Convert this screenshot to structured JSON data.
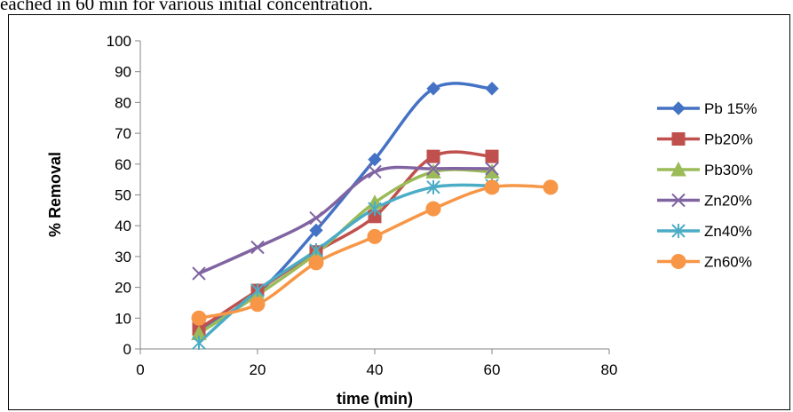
{
  "caption": "eached in 60 min for various initial concentration.",
  "chart_data": {
    "type": "scatter",
    "subtype": "smoothed lines with markers",
    "xlabel": "time (min)",
    "ylabel": "% Removal",
    "xlim": [
      0,
      80
    ],
    "ylim": [
      0,
      100
    ],
    "x_ticks": [
      0,
      20,
      40,
      60,
      80
    ],
    "y_ticks": [
      0,
      10,
      20,
      30,
      40,
      50,
      60,
      70,
      80,
      90,
      100
    ],
    "grid": false,
    "legend_position": "right",
    "series": [
      {
        "name": "Pb 15%",
        "color": "#4472c4",
        "marker": "diamond",
        "x": [
          10,
          20,
          30,
          40,
          50,
          60
        ],
        "y": [
          6,
          18,
          38.5,
          61.5,
          84.5,
          84.5
        ]
      },
      {
        "name": "Pb20%",
        "color": "#c0504d",
        "marker": "square",
        "x": [
          10,
          20,
          30,
          40,
          50,
          60
        ],
        "y": [
          6.5,
          19,
          31.5,
          43,
          62.5,
          62.5
        ]
      },
      {
        "name": "Pb30%",
        "color": "#9bbb59",
        "marker": "triangle",
        "x": [
          10,
          20,
          30,
          40,
          50,
          60
        ],
        "y": [
          5,
          17.5,
          31,
          47.5,
          57.5,
          57.5
        ]
      },
      {
        "name": "Zn20%",
        "color": "#8064a2",
        "marker": "x",
        "x": [
          10,
          20,
          30,
          40,
          50,
          60
        ],
        "y": [
          24.5,
          33,
          42.5,
          57.5,
          58.5,
          58.5
        ]
      },
      {
        "name": "Zn40%",
        "color": "#4bacc6",
        "marker": "star",
        "x": [
          10,
          20,
          30,
          40,
          50,
          60
        ],
        "y": [
          2,
          19,
          32,
          45.5,
          52.5,
          53
        ]
      },
      {
        "name": "Zn60%",
        "color": "#f79646",
        "marker": "circle",
        "x": [
          10,
          20,
          30,
          40,
          50,
          60,
          70
        ],
        "y": [
          10,
          14.5,
          28,
          36.5,
          45.5,
          52.5,
          52.5
        ]
      }
    ]
  }
}
